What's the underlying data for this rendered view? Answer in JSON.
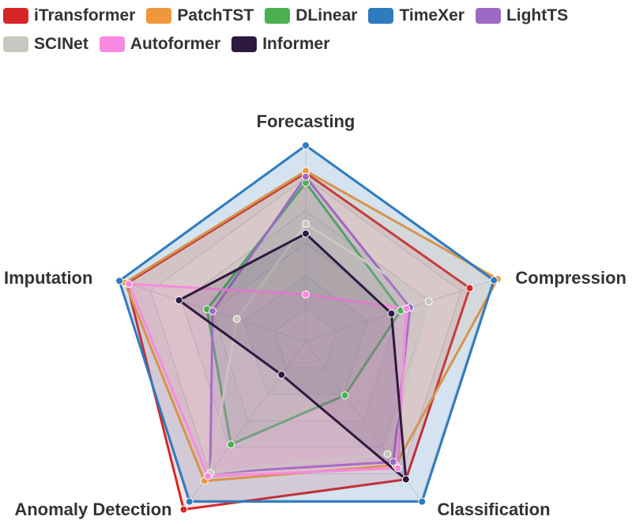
{
  "chart_data": {
    "type": "radar",
    "axes": [
      "Forecasting",
      "Compression",
      "Classification",
      "Anomaly Detection",
      "Imputation"
    ],
    "rmax": 100,
    "rings": 6,
    "legend": {
      "placement": "top-left"
    },
    "series": [
      {
        "name": "iTransformer",
        "color": "#d62728",
        "values": [
          86,
          88,
          87,
          106,
          96
        ]
      },
      {
        "name": "PatchTST",
        "color": "#f0973d",
        "values": [
          87,
          103,
          78,
          88,
          97
        ]
      },
      {
        "name": "DLinear",
        "color": "#4caf50",
        "values": [
          81,
          51,
          34,
          65,
          53
        ]
      },
      {
        "name": "TimeXer",
        "color": "#2f7bbd",
        "values": [
          100,
          101,
          101,
          101,
          100
        ]
      },
      {
        "name": "LightTS",
        "color": "#9c6ac4",
        "values": [
          84,
          56,
          76,
          83,
          50
        ]
      },
      {
        "name": "SCINet",
        "color": "#c8c8c0",
        "values": [
          60,
          66,
          71,
          83,
          37
        ]
      },
      {
        "name": "Autoformer",
        "color": "#f78ae0",
        "values": [
          24,
          54,
          80,
          85,
          95
        ]
      },
      {
        "name": "Informer",
        "color": "#2e1a3f",
        "values": [
          55,
          46,
          87,
          21,
          68
        ]
      }
    ]
  }
}
